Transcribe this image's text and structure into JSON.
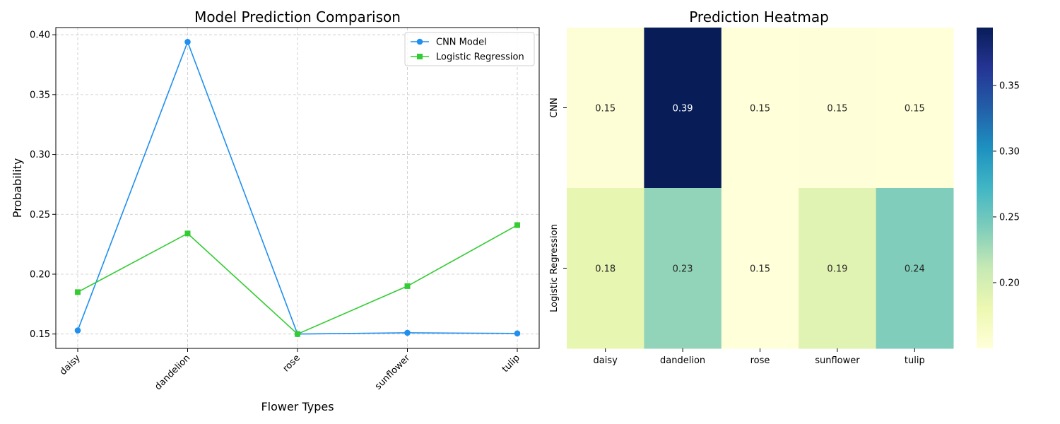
{
  "chart_data": [
    {
      "type": "line",
      "title": "Model Prediction Comparison",
      "xlabel": "Flower Types",
      "ylabel": "Probability",
      "categories": [
        "daisy",
        "dandelion",
        "rose",
        "sunflower",
        "tulip"
      ],
      "yticks": [
        "0.15",
        "0.20",
        "0.25",
        "0.30",
        "0.35",
        "0.40"
      ],
      "ylim": [
        0.138,
        0.406
      ],
      "grid": true,
      "legend_position": "top-right",
      "series": [
        {
          "name": "CNN Model",
          "color": "#1f8ff0",
          "marker": "circle",
          "values": [
            0.153,
            0.394,
            0.15,
            0.151,
            0.1505
          ]
        },
        {
          "name": "Logistic Regression",
          "color": "#33cc33",
          "marker": "square",
          "values": [
            0.185,
            0.234,
            0.15,
            0.19,
            0.241
          ]
        }
      ]
    },
    {
      "type": "heatmap",
      "title": "Prediction Heatmap",
      "columns": [
        "daisy",
        "dandelion",
        "rose",
        "sunflower",
        "tulip"
      ],
      "rows": [
        "CNN",
        "Logistic Regression"
      ],
      "values": [
        [
          0.153,
          0.394,
          0.15,
          0.151,
          0.1505
        ],
        [
          0.185,
          0.234,
          0.15,
          0.19,
          0.241
        ]
      ],
      "cell_labels": [
        [
          "0.15",
          "0.39",
          "0.15",
          "0.15",
          "0.15"
        ],
        [
          "0.18",
          "0.23",
          "0.15",
          "0.19",
          "0.24"
        ]
      ],
      "colormap": "YlGnBu",
      "colorbar_range": [
        0.15,
        0.394
      ],
      "colorbar_ticks": [
        "0.20",
        "0.25",
        "0.30",
        "0.35"
      ]
    }
  ]
}
